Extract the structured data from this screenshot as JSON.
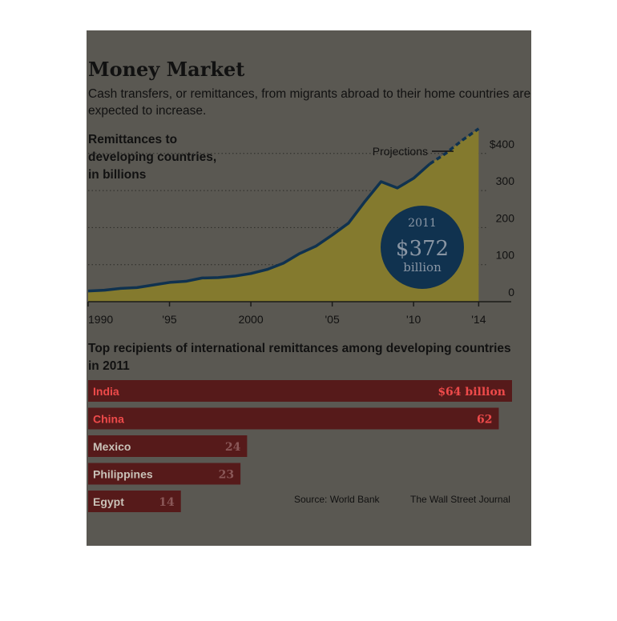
{
  "chart_data": [
    {
      "type": "area",
      "title": "Money Market",
      "subtitle": "Cash transfers, or remittances, from migrants abroad to their home countries are expected to increase.",
      "ylabel": "Remittances to developing countries, in billions",
      "x": [
        1990,
        1991,
        1992,
        1993,
        1994,
        1995,
        1996,
        1997,
        1998,
        1999,
        2000,
        2001,
        2002,
        2003,
        2004,
        2005,
        2006,
        2007,
        2008,
        2009,
        2010,
        2011,
        2012,
        2013,
        2014
      ],
      "series": [
        {
          "values": [
            29,
            31,
            36,
            38,
            45,
            52,
            55,
            64,
            65,
            69,
            76,
            87,
            104,
            130,
            150,
            180,
            212,
            270,
            324,
            307,
            333,
            372,
            401,
            436,
            467
          ]
        }
      ],
      "projection_from": 2011,
      "projection_label": "Projections",
      "ylim": [
        0,
        460
      ],
      "xlim": [
        1990,
        2016
      ],
      "yticks": [
        0,
        100,
        200,
        300,
        400
      ],
      "ytick_labels": [
        "0",
        "100",
        "200",
        "300",
        "$400"
      ],
      "xticks": [
        1990,
        1995,
        2000,
        2005,
        2010,
        2014
      ],
      "xtick_labels": [
        "1990",
        "'95",
        "2000",
        "'05",
        "'10",
        "'14"
      ],
      "callout": {
        "year": "2011",
        "value": "$372",
        "unit": "billion"
      },
      "grid": true,
      "colors": {
        "area": "#847a2e",
        "line": "#10324f",
        "callout": "#10324f",
        "grid": "#2a2a26",
        "text": "#111111"
      }
    },
    {
      "type": "bar",
      "title": "Top recipients of international remittances among developing countries in 2011",
      "categories": [
        "India",
        "China",
        "Mexico",
        "Philippines",
        "Egypt"
      ],
      "values": [
        64,
        62,
        24,
        23,
        14
      ],
      "value_labels": [
        "$64 billion",
        "62",
        "24",
        "23",
        "14"
      ],
      "xlim": [
        0,
        64
      ],
      "colors": {
        "bar": "#561a1a",
        "highlight": "#ee4a4a",
        "label": "#ffffff",
        "value": "#8a5858"
      }
    }
  ],
  "source": "Source: World Bank",
  "credit": "The Wall Street Journal"
}
